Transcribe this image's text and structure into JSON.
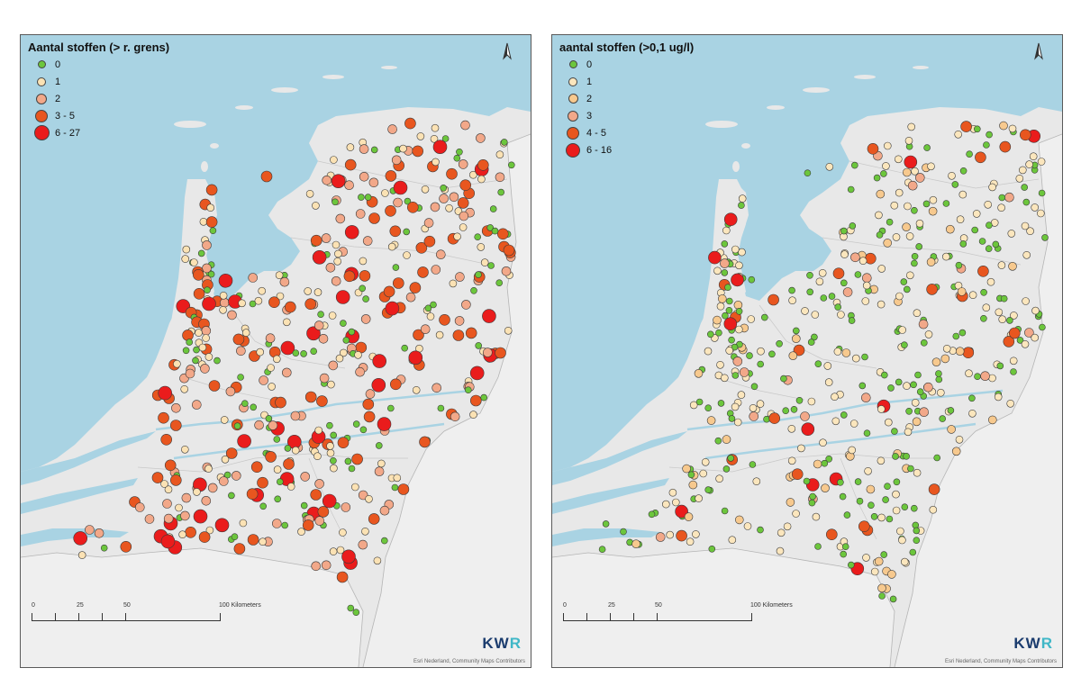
{
  "panels": [
    {
      "id": "left",
      "legend_title": "Aantal stoffen (> r. grens)",
      "legend": [
        {
          "label": "0",
          "color": "#6cc63c",
          "size": 7
        },
        {
          "label": "1",
          "color": "#fbe2b4",
          "size": 8
        },
        {
          "label": "2",
          "color": "#f2a889",
          "size": 10
        },
        {
          "label": "3 - 5",
          "color": "#e8561f",
          "size": 12
        },
        {
          "label": "6 - 27",
          "color": "#ea1c1c",
          "size": 15
        }
      ],
      "scale_labels": [
        "0",
        "25",
        "50",
        "100 Kilometers"
      ],
      "credits": "Esri Nederland, Community Maps Contributors",
      "logo": "KWR"
    },
    {
      "id": "right",
      "legend_title": "aantal stoffen (>0,1 ug/l)",
      "legend": [
        {
          "label": "0",
          "color": "#6cc63c",
          "size": 7
        },
        {
          "label": "1",
          "color": "#fbe6bd",
          "size": 8
        },
        {
          "label": "2",
          "color": "#f7c98e",
          "size": 9
        },
        {
          "label": "3",
          "color": "#f2a889",
          "size": 10
        },
        {
          "label": "4 - 5",
          "color": "#e8561f",
          "size": 12
        },
        {
          "label": "6 - 16",
          "color": "#ea1c1c",
          "size": 14
        }
      ],
      "scale_labels": [
        "0",
        "25",
        "50",
        "100 Kilometers"
      ],
      "credits": "Esri Nederland, Community Maps Contributors",
      "logo": "KWR"
    }
  ],
  "colors": {
    "water": "#a9d3e3",
    "land": "#e8e8e8",
    "border": "#5a5a5a"
  }
}
